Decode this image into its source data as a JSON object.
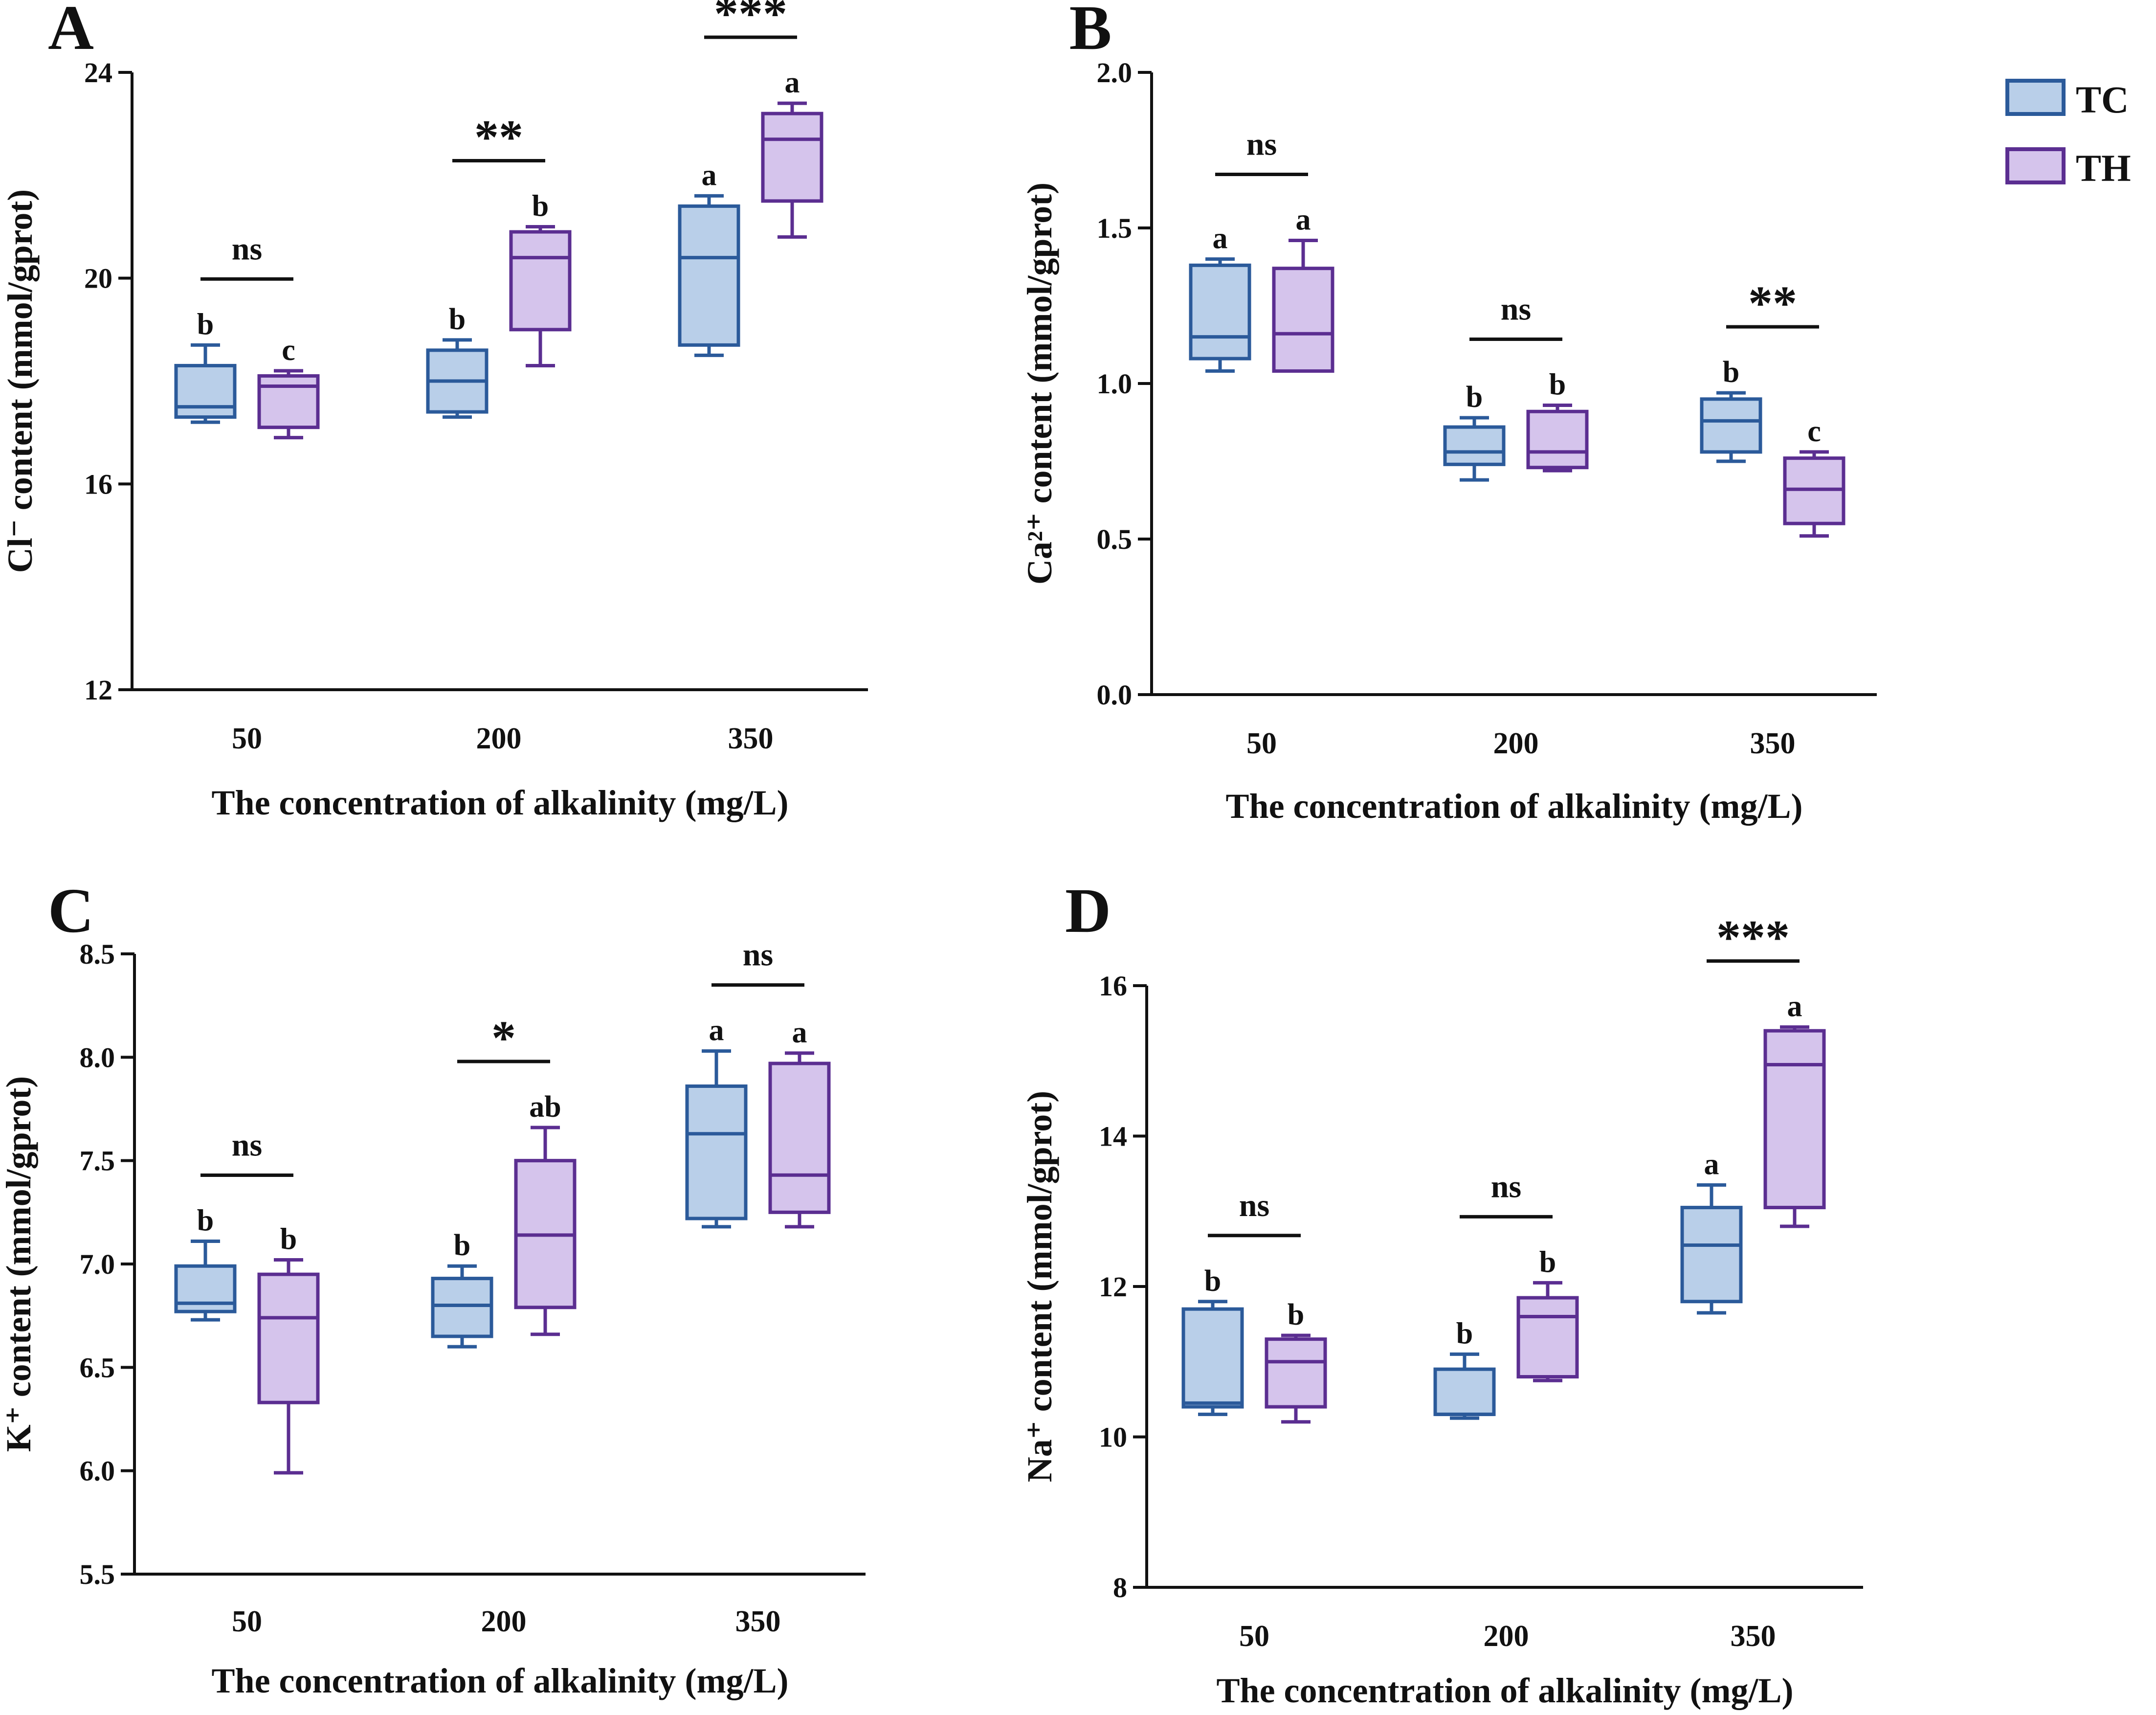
{
  "legend": {
    "entries": [
      {
        "label": "TC",
        "fill": "#b9cfe9",
        "stroke": "#2b5a9a"
      },
      {
        "label": "TH",
        "fill": "#d5c4ec",
        "stroke": "#5b2e91"
      }
    ]
  },
  "chart_data": [
    {
      "panel": "A",
      "type": "box",
      "title": "",
      "xlabel": "The concentration of alkalinity (mg/L)",
      "ylabel": "Cl⁻ content (mmol/gprot)",
      "ylim": [
        12,
        24
      ],
      "yticks": [
        "12",
        "16",
        "20",
        "24"
      ],
      "categories": [
        "50",
        "200",
        "350"
      ],
      "series": [
        {
          "name": "TC",
          "boxes": [
            {
              "min": 17.2,
              "q1": 17.3,
              "median": 17.5,
              "q3": 18.3,
              "max": 18.7,
              "letter": "b"
            },
            {
              "min": 17.3,
              "q1": 17.4,
              "median": 18.0,
              "q3": 18.6,
              "max": 18.8,
              "letter": "b"
            },
            {
              "min": 18.5,
              "q1": 18.7,
              "median": 20.4,
              "q3": 21.4,
              "max": 21.6,
              "letter": "a"
            }
          ]
        },
        {
          "name": "TH",
          "boxes": [
            {
              "min": 16.9,
              "q1": 17.1,
              "median": 17.9,
              "q3": 18.1,
              "max": 18.2,
              "letter": "c"
            },
            {
              "min": 18.3,
              "q1": 19.0,
              "median": 20.4,
              "q3": 20.9,
              "max": 21.0,
              "letter": "b"
            },
            {
              "min": 20.8,
              "q1": 21.5,
              "median": 22.7,
              "q3": 23.2,
              "max": 23.4,
              "letter": "a"
            }
          ]
        }
      ],
      "significance": [
        "ns",
        "**",
        "***"
      ]
    },
    {
      "panel": "B",
      "type": "box",
      "title": "",
      "xlabel": "The concentration of alkalinity (mg/L)",
      "ylabel": "Ca²⁺ content (mmol/gprot)",
      "ylim": [
        0.0,
        2.0
      ],
      "yticks": [
        "0.0",
        "0.5",
        "1.0",
        "1.5",
        "2.0"
      ],
      "categories": [
        "50",
        "200",
        "350"
      ],
      "series": [
        {
          "name": "TC",
          "boxes": [
            {
              "min": 1.04,
              "q1": 1.08,
              "median": 1.15,
              "q3": 1.38,
              "max": 1.4,
              "letter": "a"
            },
            {
              "min": 0.69,
              "q1": 0.74,
              "median": 0.78,
              "q3": 0.86,
              "max": 0.89,
              "letter": "b"
            },
            {
              "min": 0.75,
              "q1": 0.78,
              "median": 0.88,
              "q3": 0.95,
              "max": 0.97,
              "letter": "b"
            }
          ]
        },
        {
          "name": "TH",
          "boxes": [
            {
              "min": 1.04,
              "q1": 1.04,
              "median": 1.16,
              "q3": 1.37,
              "max": 1.46,
              "letter": "a"
            },
            {
              "min": 0.72,
              "q1": 0.73,
              "median": 0.78,
              "q3": 0.91,
              "max": 0.93,
              "letter": "b"
            },
            {
              "min": 0.51,
              "q1": 0.55,
              "median": 0.66,
              "q3": 0.76,
              "max": 0.78,
              "letter": "c"
            }
          ]
        }
      ],
      "significance": [
        "ns",
        "ns",
        "**"
      ]
    },
    {
      "panel": "C",
      "type": "box",
      "title": "",
      "xlabel": "The concentration of alkalinity (mg/L)",
      "ylabel": "K⁺ content (mmol/gprot)",
      "ylim": [
        5.5,
        8.5
      ],
      "yticks": [
        "5.5",
        "6.0",
        "6.5",
        "7.0",
        "7.5",
        "8.0",
        "8.5"
      ],
      "categories": [
        "50",
        "200",
        "350"
      ],
      "series": [
        {
          "name": "TC",
          "boxes": [
            {
              "min": 6.73,
              "q1": 6.77,
              "median": 6.81,
              "q3": 6.99,
              "max": 7.11,
              "letter": "b"
            },
            {
              "min": 6.6,
              "q1": 6.65,
              "median": 6.8,
              "q3": 6.93,
              "max": 6.99,
              "letter": "b"
            },
            {
              "min": 7.18,
              "q1": 7.22,
              "median": 7.63,
              "q3": 7.86,
              "max": 8.03,
              "letter": "a"
            }
          ]
        },
        {
          "name": "TH",
          "boxes": [
            {
              "min": 5.99,
              "q1": 6.33,
              "median": 6.74,
              "q3": 6.95,
              "max": 7.02,
              "letter": "b"
            },
            {
              "min": 6.66,
              "q1": 6.79,
              "median": 7.14,
              "q3": 7.5,
              "max": 7.66,
              "letter": "ab"
            },
            {
              "min": 7.18,
              "q1": 7.25,
              "median": 7.43,
              "q3": 7.97,
              "max": 8.02,
              "letter": "a"
            }
          ]
        }
      ],
      "significance": [
        "ns",
        "*",
        "ns"
      ]
    },
    {
      "panel": "D",
      "type": "box",
      "title": "",
      "xlabel": "The concentration of alkalinity (mg/L)",
      "ylabel": "Na⁺ content (mmol/gprot)",
      "ylim": [
        8,
        16
      ],
      "yticks": [
        "8",
        "10",
        "12",
        "14",
        "16"
      ],
      "categories": [
        "50",
        "200",
        "350"
      ],
      "series": [
        {
          "name": "TC",
          "boxes": [
            {
              "min": 10.3,
              "q1": 10.4,
              "median": 10.45,
              "q3": 11.7,
              "max": 11.8,
              "letter": "b"
            },
            {
              "min": 10.25,
              "q1": 10.3,
              "median": 10.3,
              "q3": 10.9,
              "max": 11.1,
              "letter": "b"
            },
            {
              "min": 11.65,
              "q1": 11.8,
              "median": 12.55,
              "q3": 13.05,
              "max": 13.35,
              "letter": "a"
            }
          ]
        },
        {
          "name": "TH",
          "boxes": [
            {
              "min": 10.2,
              "q1": 10.4,
              "median": 11.0,
              "q3": 11.3,
              "max": 11.35,
              "letter": "b"
            },
            {
              "min": 10.75,
              "q1": 10.8,
              "median": 11.6,
              "q3": 11.85,
              "max": 12.05,
              "letter": "b"
            },
            {
              "min": 12.8,
              "q1": 13.05,
              "median": 14.95,
              "q3": 15.4,
              "max": 15.45,
              "letter": "a"
            }
          ]
        }
      ],
      "significance": [
        "ns",
        "ns",
        "***"
      ]
    }
  ]
}
